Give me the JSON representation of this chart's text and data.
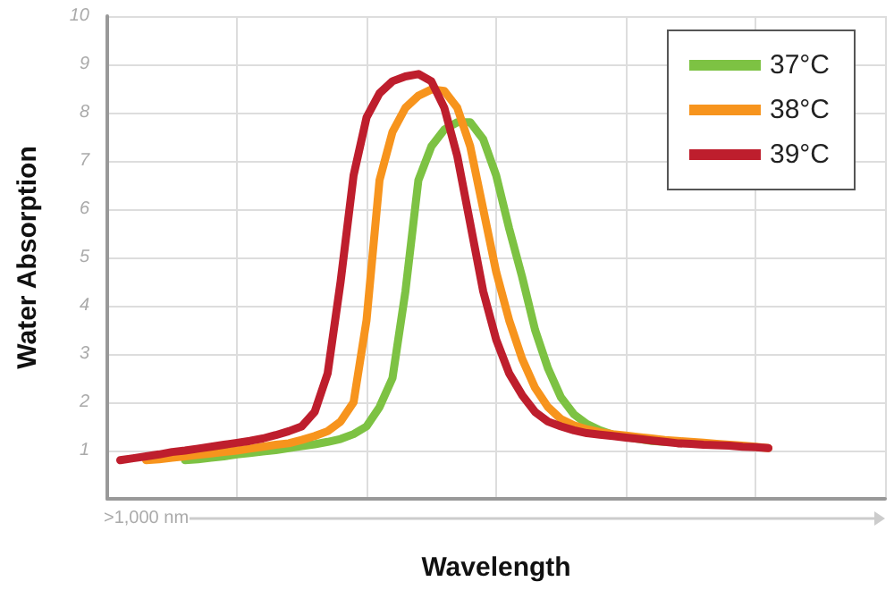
{
  "chart_data": {
    "type": "line",
    "xlabel": "Wavelength",
    "ylabel": "Water Absorption",
    "annotations": [
      ">1,000 nm"
    ],
    "categories": [
      null,
      null,
      null,
      null,
      null,
      null,
      null,
      null,
      null,
      null,
      null,
      null,
      null,
      null,
      null,
      null,
      null,
      null,
      null,
      null,
      null,
      null,
      null,
      null,
      null,
      null,
      null,
      null,
      null,
      null,
      null,
      null,
      null,
      null,
      null,
      null,
      null,
      null,
      null,
      null,
      null,
      null,
      null,
      null,
      null,
      null,
      null,
      null,
      null,
      null,
      null,
      null,
      null,
      null,
      null,
      null,
      null,
      null,
      null,
      null,
      null
    ],
    "ylim": [
      0,
      10
    ],
    "yticks": [
      1,
      2,
      3,
      4,
      5,
      6,
      7,
      8,
      9,
      10
    ],
    "tick_labels": "y",
    "grid": true,
    "legend": "top right",
    "line_style": "solid",
    "series": [
      {
        "name": "37°C",
        "color": "#7dc243",
        "values": [
          null,
          null,
          null,
          null,
          null,
          null,
          0.8,
          0.82,
          0.85,
          0.88,
          0.92,
          0.95,
          0.98,
          1.01,
          1.05,
          1.09,
          1.13,
          1.18,
          1.24,
          1.34,
          1.5,
          1.9,
          2.5,
          4.3,
          6.6,
          7.3,
          7.65,
          7.8,
          7.8,
          7.45,
          6.7,
          5.6,
          4.6,
          3.5,
          2.7,
          2.1,
          1.75,
          1.55,
          1.42,
          1.33,
          1.28,
          1.24,
          1.2,
          1.18,
          null,
          null,
          null,
          null,
          null,
          null,
          null,
          null,
          null,
          null,
          null,
          null,
          null,
          null,
          null,
          null,
          null
        ]
      },
      {
        "name": "38°C",
        "color": "#f7941d",
        "values": [
          null,
          null,
          null,
          0.8,
          0.82,
          0.85,
          0.88,
          0.91,
          0.94,
          0.97,
          1.0,
          1.04,
          1.08,
          1.12,
          1.15,
          1.22,
          1.3,
          1.4,
          1.6,
          2.0,
          3.7,
          6.6,
          7.6,
          8.1,
          8.35,
          8.48,
          8.45,
          8.1,
          7.3,
          6.0,
          4.7,
          3.7,
          2.9,
          2.3,
          1.9,
          1.65,
          1.52,
          1.44,
          1.38,
          1.34,
          1.31,
          1.28,
          1.25,
          1.22,
          1.2,
          1.18,
          1.16,
          1.14,
          1.12,
          1.1,
          1.08,
          1.05,
          null,
          null,
          null,
          null,
          null,
          null,
          null,
          null,
          null
        ]
      },
      {
        "name": "39°C",
        "color": "#be1e2d",
        "values": [
          null,
          0.8,
          0.84,
          0.88,
          0.92,
          0.97,
          1.0,
          1.04,
          1.08,
          1.12,
          1.16,
          1.2,
          1.25,
          1.32,
          1.4,
          1.5,
          1.8,
          2.6,
          4.5,
          6.7,
          7.9,
          8.4,
          8.65,
          8.75,
          8.8,
          8.65,
          8.1,
          7.1,
          5.7,
          4.3,
          3.3,
          2.6,
          2.15,
          1.8,
          1.6,
          1.5,
          1.42,
          1.36,
          1.33,
          1.3,
          1.27,
          1.24,
          1.21,
          1.18,
          1.15,
          1.14,
          1.12,
          1.11,
          1.1,
          1.08,
          1.07,
          1.05,
          null,
          null,
          null,
          null,
          null,
          null,
          null,
          null,
          null
        ]
      }
    ]
  }
}
